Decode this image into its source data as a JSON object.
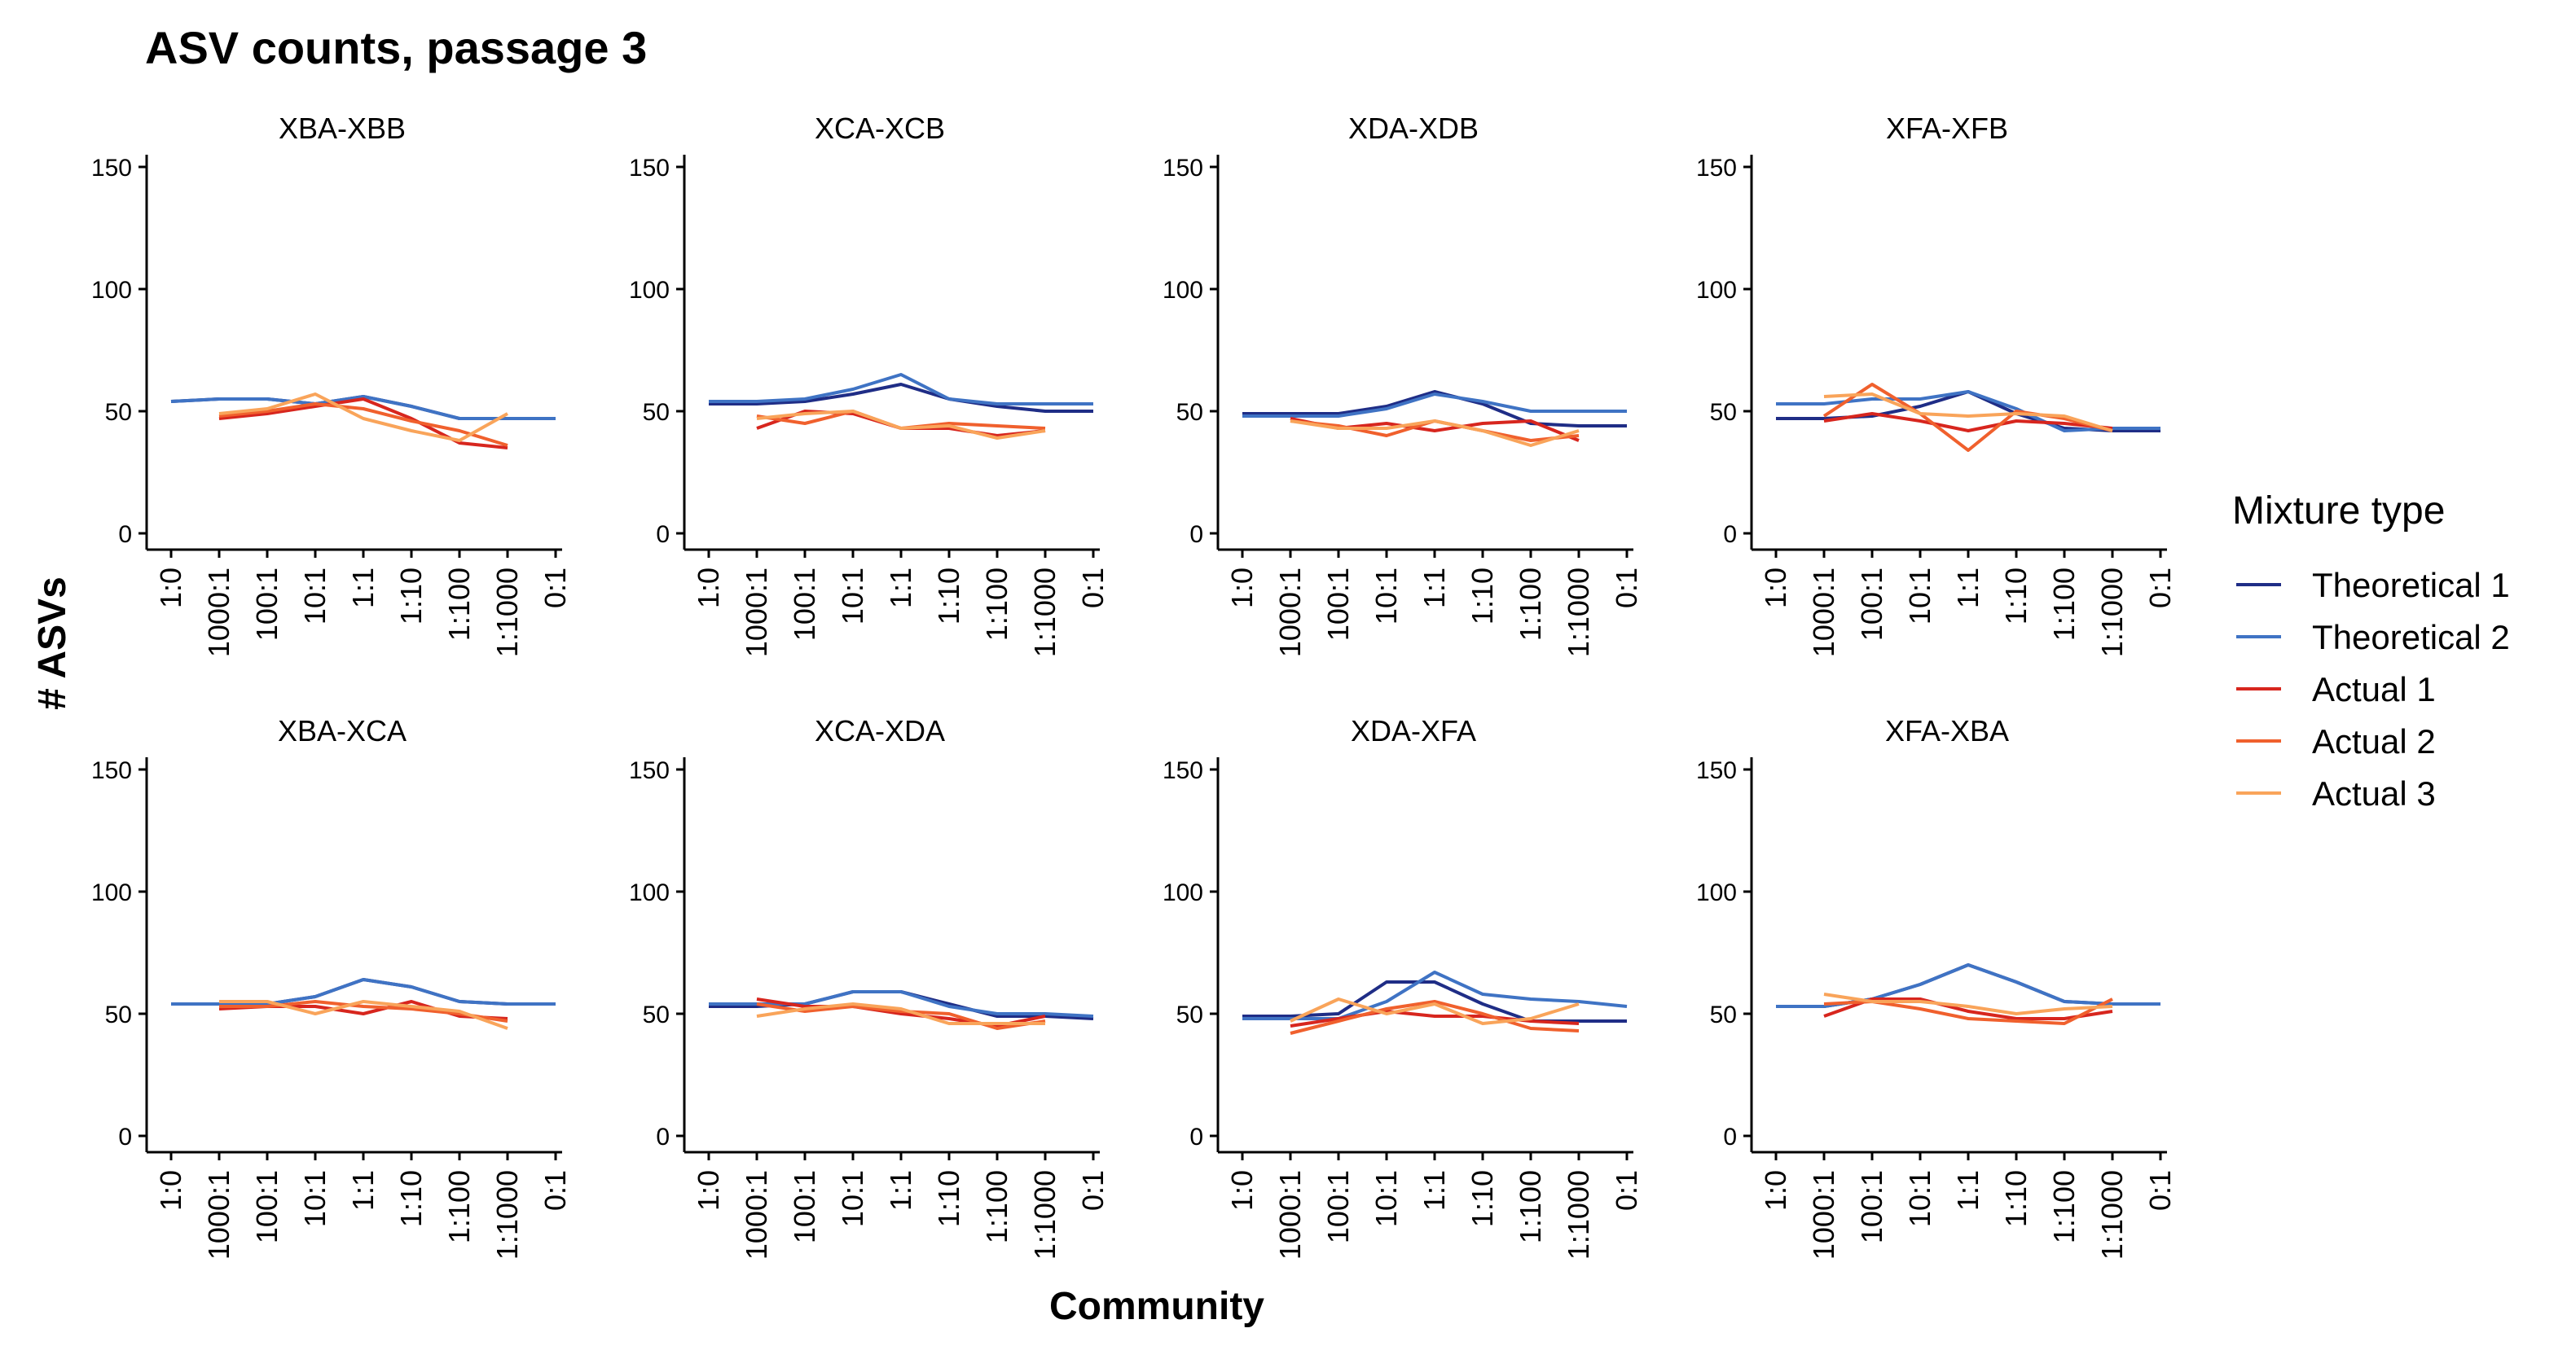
{
  "figure": {
    "title": "ASV counts, passage 3",
    "xlabel": "Community",
    "ylabel": "# ASVs",
    "legend_title": "Mixture type",
    "legend_placement": "right"
  },
  "chart_data": {
    "type": "line",
    "title": "ASV counts, passage 3",
    "xlabel": "Community",
    "ylabel": "# ASVs",
    "categories": [
      "1:0",
      "1000:1",
      "100:1",
      "10:1",
      "1:1",
      "1:10",
      "1:100",
      "1:1000",
      "0:1"
    ],
    "ylim": [
      0,
      155
    ],
    "yticks": [
      0,
      50,
      100,
      150
    ],
    "grid": false,
    "legend": {
      "title": "Mixture type",
      "placement": "right"
    },
    "series_styles": [
      {
        "name": "Theoretical 1",
        "color": "#1f2d86"
      },
      {
        "name": "Theoretical 2",
        "color": "#3f73c4"
      },
      {
        "name": "Actual 1",
        "color": "#d7261e"
      },
      {
        "name": "Actual 2",
        "color": "#f0602d"
      },
      {
        "name": "Actual 3",
        "color": "#f9a45a"
      }
    ],
    "panels": [
      {
        "title": "XBA-XBB",
        "series": [
          {
            "name": "Theoretical 1",
            "values": [
              54,
              55,
              55,
              53,
              56,
              52,
              47,
              47,
              47
            ]
          },
          {
            "name": "Theoretical 2",
            "values": [
              54,
              55,
              55,
              53,
              56,
              52,
              47,
              47,
              47
            ]
          },
          {
            "name": "Actual 1",
            "values": [
              null,
              47,
              49,
              52,
              55,
              47,
              37,
              35,
              null
            ]
          },
          {
            "name": "Actual 2",
            "values": [
              null,
              48,
              50,
              53,
              51,
              46,
              42,
              36,
              null
            ]
          },
          {
            "name": "Actual 3",
            "values": [
              null,
              49,
              51,
              57,
              47,
              42,
              38,
              49,
              null
            ]
          }
        ]
      },
      {
        "title": "XCA-XCB",
        "series": [
          {
            "name": "Theoretical 1",
            "values": [
              53,
              53,
              54,
              57,
              61,
              55,
              52,
              50,
              50
            ]
          },
          {
            "name": "Theoretical 2",
            "values": [
              54,
              54,
              55,
              59,
              65,
              55,
              53,
              53,
              53
            ]
          },
          {
            "name": "Actual 1",
            "values": [
              null,
              43,
              50,
              49,
              43,
              43,
              40,
              42,
              null
            ]
          },
          {
            "name": "Actual 2",
            "values": [
              null,
              48,
              45,
              50,
              43,
              45,
              44,
              43,
              null
            ]
          },
          {
            "name": "Actual 3",
            "values": [
              null,
              47,
              49,
              50,
              43,
              44,
              39,
              42,
              null
            ]
          }
        ]
      },
      {
        "title": "XDA-XDB",
        "series": [
          {
            "name": "Theoretical 1",
            "values": [
              49,
              49,
              49,
              52,
              58,
              53,
              45,
              44,
              44
            ]
          },
          {
            "name": "Theoretical 2",
            "values": [
              48,
              48,
              48,
              51,
              57,
              54,
              50,
              50,
              50
            ]
          },
          {
            "name": "Actual 1",
            "values": [
              null,
              47,
              43,
              45,
              42,
              45,
              46,
              38,
              null
            ]
          },
          {
            "name": "Actual 2",
            "values": [
              null,
              46,
              44,
              40,
              46,
              42,
              38,
              40,
              null
            ]
          },
          {
            "name": "Actual 3",
            "values": [
              null,
              46,
              43,
              43,
              46,
              42,
              36,
              42,
              null
            ]
          }
        ]
      },
      {
        "title": "XFA-XFB",
        "series": [
          {
            "name": "Theoretical 1",
            "values": [
              47,
              47,
              48,
              52,
              58,
              49,
              43,
              42,
              42
            ]
          },
          {
            "name": "Theoretical 2",
            "values": [
              53,
              53,
              55,
              55,
              58,
              51,
              42,
              43,
              43
            ]
          },
          {
            "name": "Actual 1",
            "values": [
              null,
              46,
              49,
              46,
              42,
              46,
              45,
              43,
              null
            ]
          },
          {
            "name": "Actual 2",
            "values": [
              null,
              48,
              61,
              49,
              34,
              50,
              47,
              42,
              null
            ]
          },
          {
            "name": "Actual 3",
            "values": [
              null,
              56,
              57,
              49,
              48,
              49,
              48,
              42,
              null
            ]
          }
        ]
      },
      {
        "title": "XBA-XCA",
        "series": [
          {
            "name": "Theoretical 1",
            "values": [
              54,
              54,
              54,
              57,
              64,
              61,
              55,
              54,
              54
            ]
          },
          {
            "name": "Theoretical 2",
            "values": [
              54,
              54,
              54,
              57,
              64,
              61,
              55,
              54,
              54
            ]
          },
          {
            "name": "Actual 1",
            "values": [
              null,
              52,
              53,
              53,
              50,
              55,
              49,
              48,
              null
            ]
          },
          {
            "name": "Actual 2",
            "values": [
              null,
              53,
              53,
              55,
              53,
              52,
              50,
              47,
              null
            ]
          },
          {
            "name": "Actual 3",
            "values": [
              null,
              55,
              55,
              50,
              55,
              53,
              51,
              44,
              null
            ]
          }
        ]
      },
      {
        "title": "XCA-XDA",
        "series": [
          {
            "name": "Theoretical 1",
            "values": [
              53,
              53,
              54,
              59,
              59,
              54,
              49,
              49,
              48
            ]
          },
          {
            "name": "Theoretical 2",
            "values": [
              54,
              54,
              54,
              59,
              59,
              53,
              50,
              50,
              49
            ]
          },
          {
            "name": "Actual 1",
            "values": [
              null,
              56,
              53,
              53,
              50,
              48,
              45,
              49,
              null
            ]
          },
          {
            "name": "Actual 2",
            "values": [
              null,
              54,
              51,
              53,
              51,
              50,
              44,
              47,
              null
            ]
          },
          {
            "name": "Actual 3",
            "values": [
              null,
              49,
              52,
              54,
              52,
              46,
              46,
              46,
              null
            ]
          }
        ]
      },
      {
        "title": "XDA-XFA",
        "series": [
          {
            "name": "Theoretical 1",
            "values": [
              49,
              49,
              50,
              63,
              63,
              54,
              47,
              47,
              47
            ]
          },
          {
            "name": "Theoretical 2",
            "values": [
              48,
              48,
              48,
              55,
              67,
              58,
              56,
              55,
              53
            ]
          },
          {
            "name": "Actual 1",
            "values": [
              null,
              45,
              48,
              51,
              49,
              49,
              47,
              46,
              null
            ]
          },
          {
            "name": "Actual 2",
            "values": [
              null,
              42,
              47,
              52,
              55,
              50,
              44,
              43,
              null
            ]
          },
          {
            "name": "Actual 3",
            "values": [
              null,
              47,
              56,
              50,
              54,
              46,
              48,
              54,
              null
            ]
          }
        ]
      },
      {
        "title": "XFA-XBA",
        "series": [
          {
            "name": "Theoretical 1",
            "values": [
              53,
              53,
              56,
              62,
              70,
              63,
              55,
              54,
              54
            ]
          },
          {
            "name": "Theoretical 2",
            "values": [
              53,
              53,
              56,
              62,
              70,
              63,
              55,
              54,
              54
            ]
          },
          {
            "name": "Actual 1",
            "values": [
              null,
              49,
              56,
              56,
              51,
              48,
              48,
              51,
              null
            ]
          },
          {
            "name": "Actual 2",
            "values": [
              null,
              54,
              55,
              52,
              48,
              47,
              46,
              56,
              null
            ]
          },
          {
            "name": "Actual 3",
            "values": [
              null,
              58,
              55,
              55,
              53,
              50,
              52,
              53,
              null
            ]
          }
        ]
      }
    ]
  }
}
